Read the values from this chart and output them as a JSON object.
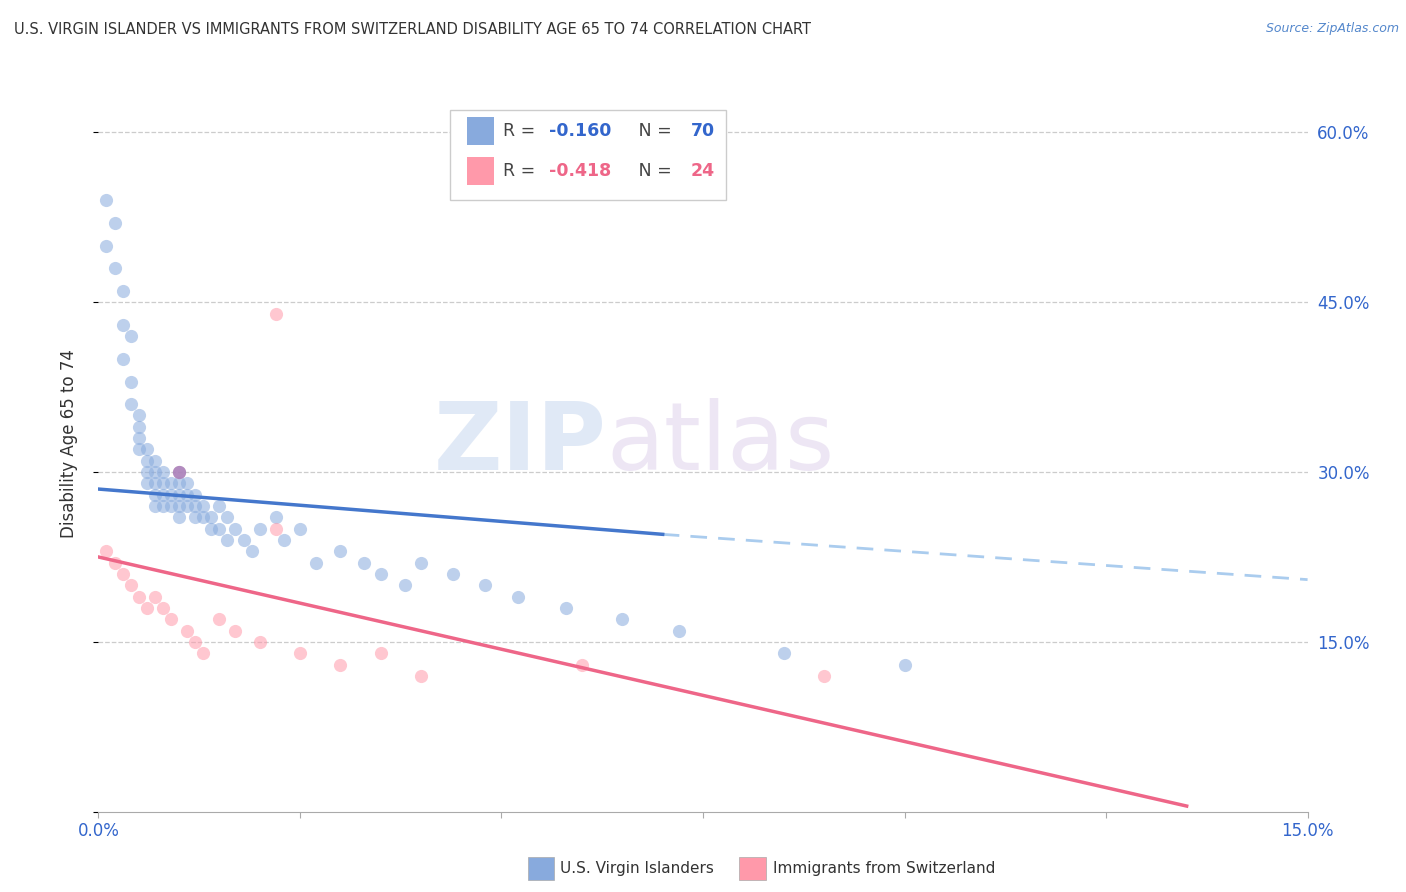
{
  "title": "U.S. VIRGIN ISLANDER VS IMMIGRANTS FROM SWITZERLAND DISABILITY AGE 65 TO 74 CORRELATION CHART",
  "source": "Source: ZipAtlas.com",
  "ylabel": "Disability Age 65 to 74",
  "xlim": [
    0.0,
    0.15
  ],
  "ylim": [
    0.0,
    0.65
  ],
  "watermark_zip": "ZIP",
  "watermark_atlas": "atlas",
  "legend_r1": "-0.160",
  "legend_n1": "70",
  "legend_r2": "-0.418",
  "legend_n2": "24",
  "color_blue": "#88AADD",
  "color_pink": "#FF99AA",
  "color_blue_line": "#4477CC",
  "color_pink_line": "#EE6688",
  "color_dashed": "#AACCEE",
  "blue_x": [
    0.001,
    0.001,
    0.002,
    0.002,
    0.003,
    0.003,
    0.003,
    0.004,
    0.004,
    0.004,
    0.005,
    0.005,
    0.005,
    0.005,
    0.006,
    0.006,
    0.006,
    0.006,
    0.007,
    0.007,
    0.007,
    0.007,
    0.007,
    0.008,
    0.008,
    0.008,
    0.008,
    0.009,
    0.009,
    0.009,
    0.01,
    0.01,
    0.01,
    0.01,
    0.01,
    0.011,
    0.011,
    0.011,
    0.012,
    0.012,
    0.012,
    0.013,
    0.013,
    0.014,
    0.014,
    0.015,
    0.015,
    0.016,
    0.016,
    0.017,
    0.018,
    0.019,
    0.02,
    0.022,
    0.023,
    0.025,
    0.027,
    0.03,
    0.033,
    0.035,
    0.038,
    0.04,
    0.044,
    0.048,
    0.052,
    0.058,
    0.065,
    0.072,
    0.085,
    0.1
  ],
  "blue_y": [
    0.54,
    0.5,
    0.52,
    0.48,
    0.46,
    0.43,
    0.4,
    0.42,
    0.38,
    0.36,
    0.35,
    0.34,
    0.33,
    0.32,
    0.32,
    0.31,
    0.3,
    0.29,
    0.31,
    0.3,
    0.29,
    0.28,
    0.27,
    0.3,
    0.29,
    0.28,
    0.27,
    0.29,
    0.28,
    0.27,
    0.3,
    0.29,
    0.28,
    0.27,
    0.26,
    0.29,
    0.28,
    0.27,
    0.28,
    0.27,
    0.26,
    0.27,
    0.26,
    0.26,
    0.25,
    0.27,
    0.25,
    0.26,
    0.24,
    0.25,
    0.24,
    0.23,
    0.25,
    0.26,
    0.24,
    0.25,
    0.22,
    0.23,
    0.22,
    0.21,
    0.2,
    0.22,
    0.21,
    0.2,
    0.19,
    0.18,
    0.17,
    0.16,
    0.14,
    0.13
  ],
  "pink_x": [
    0.001,
    0.002,
    0.003,
    0.004,
    0.005,
    0.006,
    0.007,
    0.008,
    0.009,
    0.01,
    0.011,
    0.012,
    0.013,
    0.015,
    0.017,
    0.02,
    0.022,
    0.025,
    0.03,
    0.035,
    0.04,
    0.06,
    0.09,
    0.022
  ],
  "pink_y": [
    0.23,
    0.22,
    0.21,
    0.2,
    0.19,
    0.18,
    0.19,
    0.18,
    0.17,
    0.3,
    0.16,
    0.15,
    0.14,
    0.17,
    0.16,
    0.15,
    0.25,
    0.14,
    0.13,
    0.14,
    0.12,
    0.13,
    0.12,
    0.44
  ],
  "blue_line_x": [
    0.0,
    0.07
  ],
  "blue_line_y": [
    0.285,
    0.245
  ],
  "dash_line_x": [
    0.07,
    0.15
  ],
  "dash_line_y": [
    0.245,
    0.205
  ],
  "pink_line_x": [
    0.0,
    0.135
  ],
  "pink_line_y": [
    0.225,
    0.005
  ]
}
